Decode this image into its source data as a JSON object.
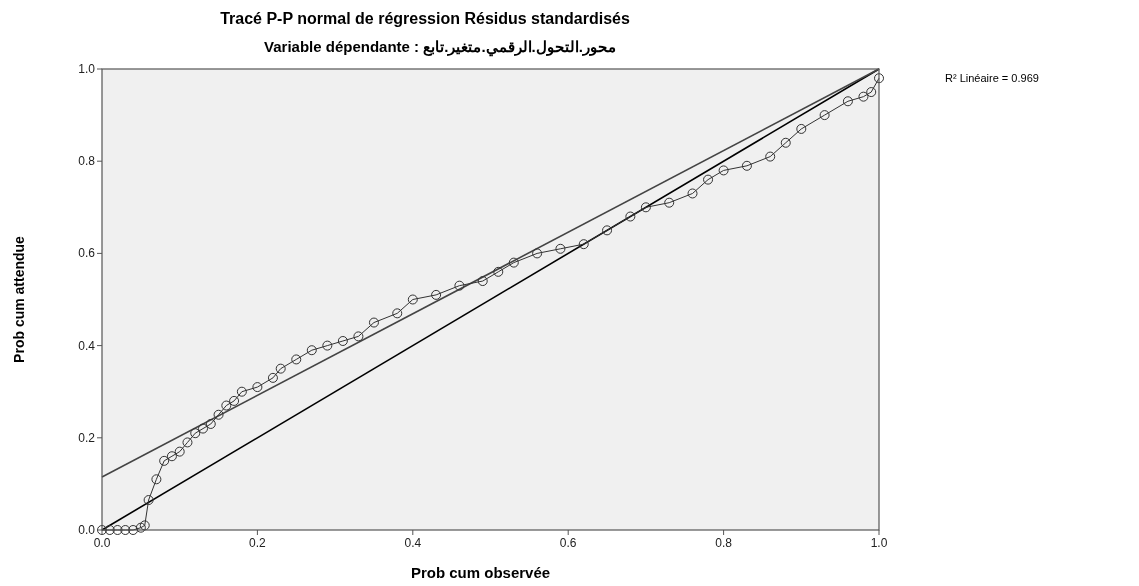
{
  "chart_data": {
    "type": "line",
    "title": "Tracé P-P normal de régression Résidus standardisés",
    "subtitle": "Variable dépendante : محور.التحول.الرقمي.متغير.تابع",
    "xlabel": "Prob cum observée",
    "ylabel": "Prob cum attendue",
    "annotations": [
      "R² Linéaire = 0.969"
    ],
    "xlim": [
      0,
      1
    ],
    "ylim": [
      0,
      1
    ],
    "xticks": [
      {
        "value": 0,
        "label": "0.0"
      },
      {
        "value": 0.2,
        "label": "0.2"
      },
      {
        "value": 0.4,
        "label": "0.4"
      },
      {
        "value": 0.6,
        "label": "0.6"
      },
      {
        "value": 0.8,
        "label": "0.8"
      },
      {
        "value": 1,
        "label": "1.0"
      }
    ],
    "yticks": [
      {
        "value": 0,
        "label": "0.0"
      },
      {
        "value": 0.2,
        "label": "0.2"
      },
      {
        "value": 0.4,
        "label": "0.4"
      },
      {
        "value": 0.6,
        "label": "0.6"
      },
      {
        "value": 0.8,
        "label": "0.8"
      },
      {
        "value": 1,
        "label": "1.0"
      }
    ],
    "grid": false,
    "series": [
      {
        "marker": "circle",
        "color": "#333333",
        "x": [
          0,
          0.01,
          0.02,
          0.03,
          0.04,
          0.05,
          0.055,
          0.06,
          0.07,
          0.08,
          0.09,
          0.1,
          0.11,
          0.12,
          0.13,
          0.14,
          0.15,
          0.16,
          0.17,
          0.18,
          0.2,
          0.22,
          0.23,
          0.25,
          0.27,
          0.29,
          0.31,
          0.33,
          0.35,
          0.38,
          0.4,
          0.43,
          0.46,
          0.49,
          0.51,
          0.53,
          0.56,
          0.59,
          0.62,
          0.65,
          0.68,
          0.7,
          0.73,
          0.76,
          0.78,
          0.8,
          0.83,
          0.86,
          0.88,
          0.9,
          0.93,
          0.96,
          0.98,
          0.99,
          1.0
        ],
        "values": [
          0,
          0,
          0,
          0,
          0,
          0.005,
          0.01,
          0.065,
          0.11,
          0.15,
          0.16,
          0.17,
          0.19,
          0.21,
          0.22,
          0.23,
          0.25,
          0.27,
          0.28,
          0.3,
          0.31,
          0.33,
          0.35,
          0.37,
          0.39,
          0.4,
          0.41,
          0.42,
          0.45,
          0.47,
          0.5,
          0.51,
          0.53,
          0.54,
          0.56,
          0.58,
          0.6,
          0.61,
          0.62,
          0.65,
          0.68,
          0.7,
          0.71,
          0.73,
          0.76,
          0.78,
          0.79,
          0.81,
          0.84,
          0.87,
          0.9,
          0.93,
          0.94,
          0.95,
          0.98
        ]
      },
      {
        "marker": "none",
        "color": "#444444",
        "x": [
          0,
          1
        ],
        "values": [
          0.115,
          1.0
        ]
      },
      {
        "marker": "none",
        "color": "#000000",
        "x": [
          0,
          1
        ],
        "values": [
          0,
          1
        ]
      }
    ]
  }
}
